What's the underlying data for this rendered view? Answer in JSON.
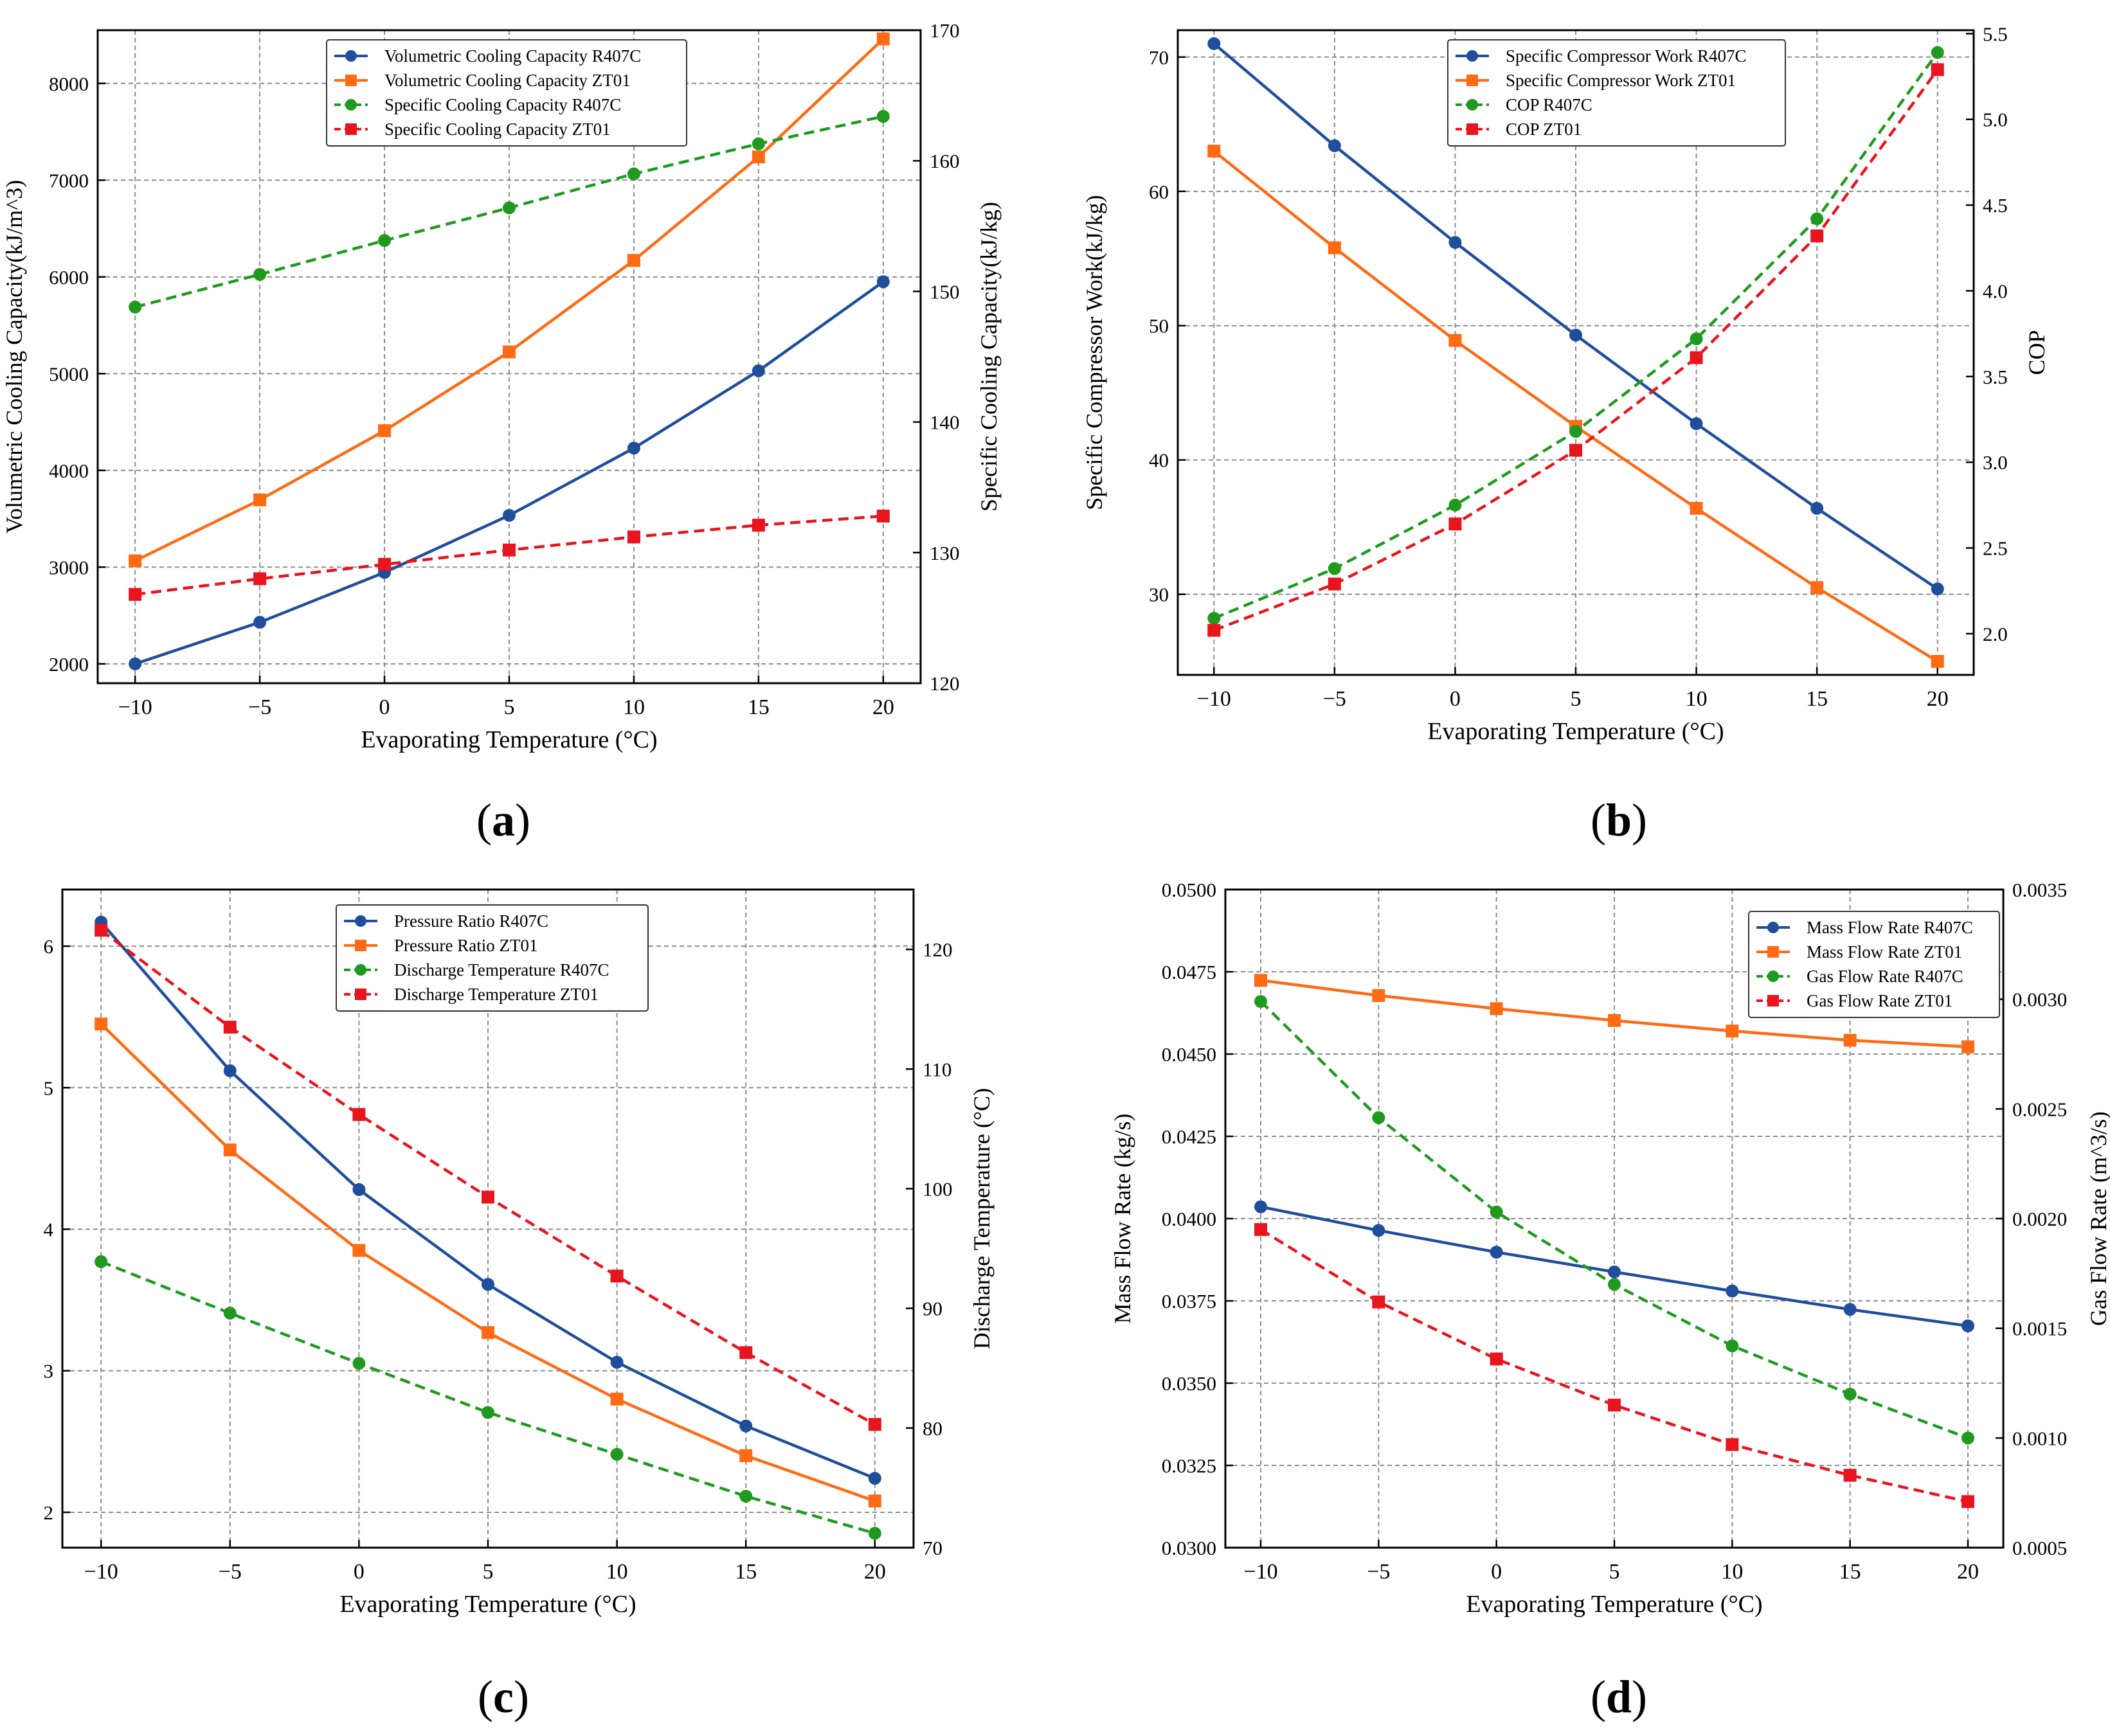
{
  "colors": {
    "blue": "#1f4e9c",
    "orange": "#ff6a13",
    "green": "#1f9a1f",
    "red": "#e8141e",
    "grid": "#8c8c8c"
  },
  "chart_data": [
    {
      "panel": "(a)",
      "panel_letter": "a",
      "type": "line",
      "xlabel": "Evaporating Temperature (°C)",
      "ylabel_left": "Volumetric Cooling Capacity(kJ/m^3)",
      "ylabel_right": "Specific Cooling Capacity(kJ/kg)",
      "x": [
        -10,
        -5,
        0,
        5,
        10,
        15,
        20
      ],
      "xticks": [
        -10,
        -5,
        0,
        5,
        10,
        15,
        20
      ],
      "xtick_labels": [
        "−10",
        "−5",
        "0",
        "5",
        "10",
        "15",
        "20"
      ],
      "xlim": [
        -11.5,
        21.5
      ],
      "ylim_left": [
        1800,
        8550
      ],
      "yticks_left": [
        2000,
        3000,
        4000,
        5000,
        6000,
        7000,
        8000
      ],
      "ytick_labels_left": [
        "2000",
        "3000",
        "4000",
        "5000",
        "6000",
        "7000",
        "8000"
      ],
      "ylim_right": [
        120,
        170
      ],
      "yticks_right": [
        120,
        130,
        140,
        150,
        160,
        170
      ],
      "ytick_labels_right": [
        "120",
        "130",
        "140",
        "150",
        "160",
        "170"
      ],
      "grid": true,
      "legend_position": "top-center",
      "series": [
        {
          "name": "Volumetric Cooling Capacity R407C",
          "axis": "left",
          "color": "blue",
          "style": "solid",
          "marker": "circle",
          "values": [
            2000,
            2430,
            2945,
            3535,
            4230,
            5030,
            5950
          ]
        },
        {
          "name": "Volumetric Cooling Capacity ZT01",
          "axis": "left",
          "color": "orange",
          "style": "solid",
          "marker": "square",
          "values": [
            3065,
            3695,
            4410,
            5225,
            6170,
            7240,
            8460
          ]
        },
        {
          "name": "Specific Cooling Capacity R407C",
          "axis": "right",
          "color": "green",
          "style": "dashed",
          "marker": "circle",
          "values": [
            148.8,
            151.3,
            153.9,
            156.4,
            159.0,
            161.3,
            163.4
          ]
        },
        {
          "name": "Specific Cooling Capacity ZT01",
          "axis": "right",
          "color": "red",
          "style": "dashed",
          "marker": "square",
          "values": [
            126.8,
            128.0,
            129.1,
            130.2,
            131.2,
            132.1,
            132.8
          ]
        }
      ]
    },
    {
      "panel": "(b)",
      "panel_letter": "b",
      "type": "line",
      "xlabel": "Evaporating Temperature (°C)",
      "ylabel_left": "Specific Compressor Work(kJ/kg)",
      "ylabel_right": "COP",
      "x": [
        -10,
        -5,
        0,
        5,
        10,
        15,
        20
      ],
      "xticks": [
        -10,
        -5,
        0,
        5,
        10,
        15,
        20
      ],
      "xtick_labels": [
        "−10",
        "−5",
        "0",
        "5",
        "10",
        "15",
        "20"
      ],
      "xlim": [
        -11.5,
        21.5
      ],
      "ylim_left": [
        24,
        72
      ],
      "yticks_left": [
        30,
        40,
        50,
        60,
        70
      ],
      "ytick_labels_left": [
        "30",
        "40",
        "50",
        "60",
        "70"
      ],
      "ylim_right": [
        1.76,
        5.52
      ],
      "yticks_right": [
        2.0,
        2.5,
        3.0,
        3.5,
        4.0,
        4.5,
        5.0,
        5.5
      ],
      "ytick_labels_right": [
        "2.0",
        "2.5",
        "3.0",
        "3.5",
        "4.0",
        "4.5",
        "5.0",
        "5.5"
      ],
      "grid": true,
      "legend_position": "top-center",
      "series": [
        {
          "name": "Specific Compressor Work R407C",
          "axis": "left",
          "color": "blue",
          "style": "solid",
          "marker": "circle",
          "values": [
            71.0,
            63.4,
            56.2,
            49.3,
            42.7,
            36.4,
            30.4
          ]
        },
        {
          "name": "Specific Compressor Work ZT01",
          "axis": "left",
          "color": "orange",
          "style": "solid",
          "marker": "square",
          "values": [
            63.0,
            55.8,
            48.9,
            42.5,
            36.4,
            30.5,
            25.0
          ]
        },
        {
          "name": "COP R407C",
          "axis": "right",
          "color": "green",
          "style": "dashed",
          "marker": "circle",
          "values": [
            2.09,
            2.38,
            2.75,
            3.18,
            3.72,
            4.42,
            5.39
          ]
        },
        {
          "name": "COP ZT01",
          "axis": "right",
          "color": "red",
          "style": "dashed",
          "marker": "square",
          "values": [
            2.02,
            2.29,
            2.64,
            3.07,
            3.61,
            4.32,
            5.29
          ]
        }
      ]
    },
    {
      "panel": "(c)",
      "panel_letter": "c",
      "type": "line",
      "xlabel": "Evaporating Temperature (°C)",
      "ylabel_left": "Pressure Ratio",
      "ylabel_right": "Discharge Temperature (°C)",
      "x": [
        -10,
        -5,
        0,
        5,
        10,
        15,
        20
      ],
      "xticks": [
        -10,
        -5,
        0,
        5,
        10,
        15,
        20
      ],
      "xtick_labels": [
        "−10",
        "−5",
        "0",
        "5",
        "10",
        "15",
        "20"
      ],
      "xlim": [
        -11.5,
        21.5
      ],
      "ylim_left": [
        1.75,
        6.4
      ],
      "yticks_left": [
        2,
        3,
        4,
        5,
        6
      ],
      "ytick_labels_left": [
        "2",
        "3",
        "4",
        "5",
        "6"
      ],
      "ylim_right": [
        70,
        125
      ],
      "yticks_right": [
        70,
        80,
        90,
        100,
        110,
        120
      ],
      "ytick_labels_right": [
        "70",
        "80",
        "90",
        "100",
        "110",
        "120"
      ],
      "grid": true,
      "legend_position": "top-center",
      "series": [
        {
          "name": "Pressure Ratio R407C",
          "axis": "left",
          "color": "blue",
          "style": "solid",
          "marker": "circle",
          "values": [
            6.17,
            5.12,
            4.28,
            3.61,
            3.06,
            2.61,
            2.24
          ]
        },
        {
          "name": "Pressure Ratio ZT01",
          "axis": "left",
          "color": "orange",
          "style": "solid",
          "marker": "square",
          "values": [
            5.45,
            4.56,
            3.85,
            3.27,
            2.8,
            2.4,
            2.08
          ]
        },
        {
          "name": "Discharge Temperature R407C",
          "axis": "right",
          "color": "green",
          "style": "dashed",
          "marker": "circle",
          "values": [
            93.9,
            89.6,
            85.4,
            81.3,
            77.8,
            74.3,
            71.2
          ]
        },
        {
          "name": "Discharge Temperature ZT01",
          "axis": "right",
          "color": "red",
          "style": "dashed",
          "marker": "square",
          "values": [
            121.6,
            113.5,
            106.2,
            99.3,
            92.7,
            86.3,
            80.3
          ]
        }
      ]
    },
    {
      "panel": "(d)",
      "panel_letter": "d",
      "type": "line",
      "xlabel": "Evaporating Temperature (°C)",
      "ylabel_left": "Mass Flow Rate (kg/s)",
      "ylabel_right": "Gas Flow Rate (m^3/s)",
      "x": [
        -10,
        -5,
        0,
        5,
        10,
        15,
        20
      ],
      "xticks": [
        -10,
        -5,
        0,
        5,
        10,
        15,
        20
      ],
      "xtick_labels": [
        "−10",
        "−5",
        "0",
        "5",
        "10",
        "15",
        "20"
      ],
      "xlim": [
        -11.5,
        21.5
      ],
      "ylim_left": [
        0.03,
        0.05
      ],
      "yticks_left": [
        0.03,
        0.0325,
        0.035,
        0.0375,
        0.04,
        0.0425,
        0.045,
        0.0475,
        0.05
      ],
      "ytick_labels_left": [
        "0.0300",
        "0.0325",
        "0.0350",
        "0.0375",
        "0.0400",
        "0.0425",
        "0.0450",
        "0.0475",
        "0.0500"
      ],
      "ylim_right": [
        0.0005,
        0.0035
      ],
      "yticks_right": [
        0.0005,
        0.001,
        0.0015,
        0.002,
        0.0025,
        0.003,
        0.0035
      ],
      "ytick_labels_right": [
        "0.0005",
        "0.0010",
        "0.0015",
        "0.0020",
        "0.0025",
        "0.0030",
        "0.0035"
      ],
      "grid": true,
      "legend_position": "top-right",
      "series": [
        {
          "name": "Mass Flow Rate R407C",
          "axis": "left",
          "color": "blue",
          "style": "solid",
          "marker": "circle",
          "values": [
            0.04036,
            0.03964,
            0.03898,
            0.03838,
            0.0378,
            0.03724,
            0.03674
          ]
        },
        {
          "name": "Mass Flow Rate ZT01",
          "axis": "left",
          "color": "orange",
          "style": "solid",
          "marker": "square",
          "values": [
            0.04724,
            0.04678,
            0.04638,
            0.04602,
            0.0457,
            0.04542,
            0.04522
          ]
        },
        {
          "name": "Gas Flow Rate R407C",
          "axis": "right",
          "color": "green",
          "style": "dashed",
          "marker": "circle",
          "values": [
            0.00299,
            0.00246,
            0.00203,
            0.0017,
            0.00142,
            0.0012,
            0.001
          ]
        },
        {
          "name": "Gas Flow Rate ZT01",
          "axis": "right",
          "color": "red",
          "style": "dashed",
          "marker": "square",
          "values": [
            0.00195,
            0.00162,
            0.00136,
            0.00115,
            0.00097,
            0.00083,
            0.00071
          ]
        }
      ]
    }
  ]
}
